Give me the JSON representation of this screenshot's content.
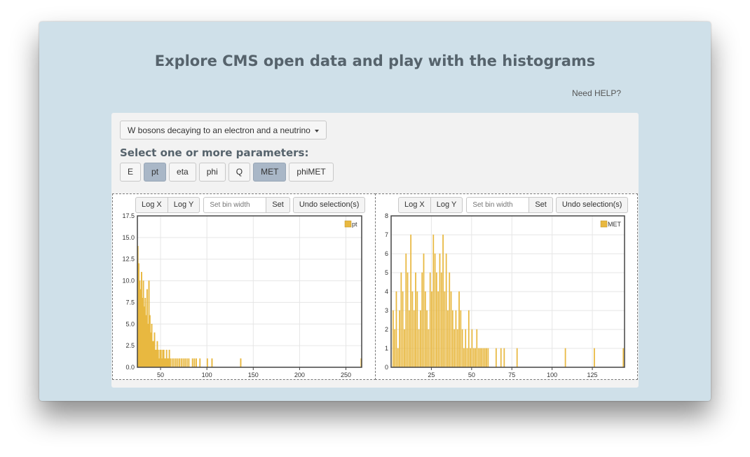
{
  "header": {
    "title": "Explore CMS open data and play with the histograms",
    "help_link": "Need HELP?"
  },
  "dataset": {
    "selected": "W bosons decaying to an electron and a neutrino"
  },
  "params": {
    "label": "Select one or more parameters:",
    "items": [
      {
        "label": "E",
        "active": false
      },
      {
        "label": "pt",
        "active": true
      },
      {
        "label": "eta",
        "active": false
      },
      {
        "label": "phi",
        "active": false
      },
      {
        "label": "Q",
        "active": false
      },
      {
        "label": "MET",
        "active": true
      },
      {
        "label": "phiMET",
        "active": false
      }
    ]
  },
  "toolbar": {
    "logx": "Log X",
    "logy": "Log Y",
    "binwidth_placeholder": "Set bin width",
    "set": "Set",
    "undo": "Undo selection(s)"
  },
  "colors": {
    "histogram": "#e8b840",
    "active_button": "#a9b7c7",
    "background": "#cfe0e9"
  },
  "chart_data": [
    {
      "type": "bar",
      "series_name": "pt",
      "xlim": [
        25,
        267
      ],
      "ylim": [
        0,
        17.5
      ],
      "xticks": [
        50,
        100,
        150,
        200,
        250
      ],
      "yticks": [
        0.0,
        2.5,
        5.0,
        7.5,
        10.0,
        12.5,
        15.0,
        17.5
      ],
      "ytick_labels": [
        "0.0",
        "2.5",
        "5.0",
        "7.5",
        "10.0",
        "12.5",
        "15.0",
        "17.5"
      ],
      "bin_width": 1,
      "x": [
        25,
        26,
        27,
        28,
        29,
        30,
        31,
        32,
        33,
        34,
        35,
        36,
        37,
        38,
        39,
        40,
        41,
        42,
        43,
        44,
        45,
        46,
        47,
        48,
        49,
        50,
        51,
        52,
        53,
        54,
        55,
        56,
        57,
        58,
        59,
        60,
        62,
        64,
        66,
        68,
        70,
        72,
        74,
        76,
        78,
        80,
        84,
        86,
        88,
        92,
        100,
        105,
        136,
        266
      ],
      "values": [
        14,
        12,
        10,
        9,
        11,
        8,
        10,
        7,
        8,
        6,
        9,
        5,
        10,
        6,
        4,
        5,
        3,
        3,
        4,
        2,
        2,
        3,
        2,
        1,
        2,
        2,
        1,
        2,
        2,
        1,
        1,
        2,
        1,
        1,
        2,
        1,
        1,
        1,
        1,
        1,
        1,
        1,
        1,
        1,
        1,
        1,
        1,
        1,
        1,
        1,
        1,
        1,
        1,
        1
      ]
    },
    {
      "type": "bar",
      "series_name": "MET",
      "xlim": [
        0,
        145
      ],
      "ylim": [
        0,
        8
      ],
      "xticks": [
        25,
        50,
        75,
        100,
        125
      ],
      "yticks": [
        0,
        1,
        2,
        3,
        4,
        5,
        6,
        7,
        8
      ],
      "ytick_labels": [
        "0",
        "1",
        "2",
        "3",
        "4",
        "5",
        "6",
        "7",
        "8"
      ],
      "bin_width": 0.5,
      "x": [
        1,
        2,
        3,
        4,
        5,
        6,
        7,
        8,
        9,
        10,
        11,
        12,
        13,
        14,
        15,
        16,
        17,
        18,
        19,
        20,
        21,
        22,
        23,
        24,
        25,
        26,
        27,
        28,
        29,
        30,
        31,
        32,
        33,
        34,
        35,
        36,
        37,
        38,
        39,
        40,
        41,
        42,
        43,
        44,
        45,
        46,
        47,
        48,
        49,
        50,
        51,
        52,
        53,
        54,
        55,
        56,
        57,
        58,
        59,
        60,
        65,
        68,
        70,
        78,
        108,
        126,
        144
      ],
      "values": [
        3,
        2,
        4,
        1,
        3,
        5,
        4,
        2,
        6,
        5,
        3,
        7,
        4,
        3,
        5,
        4,
        2,
        3,
        5,
        6,
        4,
        3,
        2,
        5,
        4,
        7,
        6,
        5,
        4,
        6,
        5,
        7,
        4,
        6,
        3,
        5,
        4,
        3,
        2,
        3,
        2,
        4,
        3,
        2,
        1,
        2,
        1,
        3,
        1,
        2,
        1,
        1,
        2,
        1,
        1,
        1,
        1,
        1,
        1,
        1,
        1,
        1,
        1,
        1,
        1,
        1,
        1
      ]
    }
  ]
}
